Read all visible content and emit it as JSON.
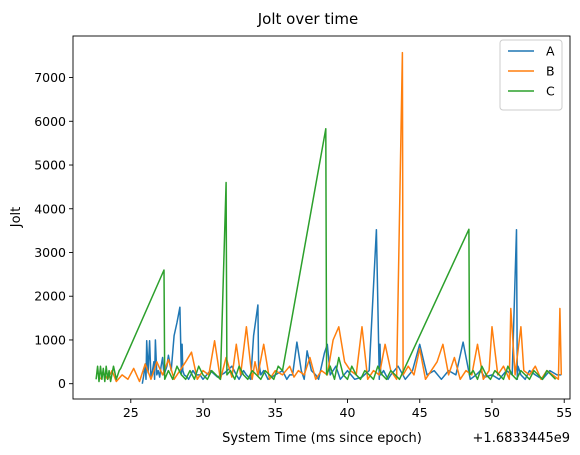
{
  "chart_data": {
    "type": "line",
    "title": "Jolt over time",
    "xlabel": "System Time (ms since epoch)",
    "ylabel": "Jolt",
    "x_offset_label": "+1.6833445e9",
    "xlim": [
      21,
      55.4
    ],
    "ylim": [
      -350,
      7950
    ],
    "xticks": [
      25,
      30,
      35,
      40,
      45,
      50,
      55
    ],
    "xtick_labels": [
      "25",
      "30",
      "35",
      "40",
      "45",
      "50",
      "55"
    ],
    "yticks": [
      0,
      1000,
      2000,
      3000,
      4000,
      5000,
      6000,
      7000
    ],
    "ytick_labels": [
      "0",
      "1000",
      "2000",
      "3000",
      "4000",
      "5000",
      "6000",
      "7000"
    ],
    "grid": false,
    "legend_position": "top-right",
    "series": [
      {
        "name": "A",
        "color": "#1f77b4",
        "x": [
          25.8,
          25.9,
          26.0,
          26.05,
          26.1,
          26.2,
          26.3,
          26.4,
          26.5,
          26.6,
          26.65,
          26.7,
          26.8,
          26.9,
          27.0,
          27.1,
          27.2,
          27.3,
          27.5,
          27.6,
          27.8,
          28.0,
          28.2,
          28.4,
          28.5,
          28.55,
          28.6,
          28.7,
          28.9,
          29.0,
          29.3,
          29.5,
          29.8,
          30.0,
          30.5,
          31.0,
          31.5,
          32.0,
          32.3,
          32.5,
          32.8,
          33.0,
          33.3,
          33.5,
          33.8,
          33.85,
          33.9,
          34.0,
          34.2,
          34.5,
          35.0,
          35.5,
          35.8,
          36.0,
          36.2,
          36.5,
          36.8,
          37.0,
          37.2,
          37.5,
          37.8,
          38.0,
          38.4,
          38.6,
          38.8,
          39.0,
          39.2,
          39.5,
          40.0,
          40.5,
          41.0,
          41.5,
          42.0,
          42.2,
          42.25,
          42.3,
          42.5,
          42.8,
          43.0,
          43.5,
          44.0,
          44.5,
          45.0,
          45.5,
          46.0,
          46.5,
          47.0,
          47.5,
          48.0,
          48.5,
          48.9,
          49.2,
          49.5,
          50.0,
          50.5,
          51.0,
          51.4,
          51.7,
          51.75,
          51.8,
          52.0,
          52.3,
          52.6,
          53.0,
          53.5,
          54.0,
          54.5,
          54.8
        ],
        "y": [
          0,
          200,
          450,
          100,
          980,
          250,
          980,
          120,
          300,
          500,
          100,
          1000,
          200,
          300,
          150,
          400,
          600,
          200,
          400,
          650,
          300,
          1100,
          1400,
          1750,
          200,
          900,
          300,
          200,
          150,
          100,
          300,
          200,
          200,
          100,
          300,
          150,
          250,
          400,
          200,
          100,
          300,
          200,
          100,
          1100,
          1800,
          200,
          400,
          200,
          300,
          100,
          200,
          300,
          100,
          200,
          200,
          950,
          300,
          100,
          750,
          300,
          200,
          100,
          700,
          900,
          200,
          300,
          400,
          100,
          300,
          100,
          150,
          300,
          3520,
          100,
          900,
          200,
          300,
          100,
          200,
          400,
          100,
          300,
          900,
          200,
          300,
          100,
          300,
          200,
          950,
          100,
          200,
          300,
          150,
          200,
          100,
          300,
          200,
          3520,
          100,
          400,
          200,
          100,
          300,
          200,
          100,
          300,
          200,
          200
        ]
      },
      {
        "name": "B",
        "color": "#ff7f0e",
        "x": [
          22.9,
          23.1,
          23.4,
          23.7,
          24.0,
          24.4,
          24.8,
          25.2,
          25.6,
          26.0,
          26.4,
          26.8,
          27.2,
          27.6,
          28.0,
          28.4,
          28.8,
          29.2,
          29.6,
          30.0,
          30.4,
          30.8,
          31.2,
          31.6,
          32.0,
          32.3,
          32.6,
          33.0,
          33.4,
          33.6,
          33.8,
          34.2,
          34.6,
          35.0,
          35.5,
          36.0,
          36.3,
          36.6,
          37.0,
          37.4,
          37.8,
          38.2,
          38.6,
          39.0,
          39.4,
          39.8,
          40.2,
          40.6,
          41.0,
          41.4,
          41.8,
          42.2,
          42.6,
          43.0,
          43.4,
          43.8,
          43.85,
          44.2,
          44.6,
          45.0,
          45.4,
          45.8,
          46.2,
          46.6,
          47.0,
          47.4,
          47.8,
          48.2,
          48.6,
          49.0,
          49.4,
          49.8,
          50.0,
          50.4,
          50.8,
          51.2,
          51.3,
          51.6,
          52.0,
          52.2,
          52.6,
          53.0,
          53.4,
          53.8,
          54.2,
          54.6,
          54.7,
          54.8
        ],
        "y": [
          100,
          250,
          100,
          300,
          50,
          200,
          100,
          350,
          50,
          450,
          100,
          500,
          200,
          550,
          100,
          300,
          500,
          720,
          100,
          300,
          200,
          980,
          100,
          600,
          150,
          900,
          200,
          1300,
          100,
          500,
          200,
          900,
          100,
          300,
          200,
          400,
          150,
          300,
          200,
          600,
          100,
          300,
          200,
          1000,
          1300,
          500,
          300,
          200,
          1300,
          100,
          300,
          200,
          900,
          300,
          100,
          7570,
          200,
          400,
          200,
          800,
          100,
          300,
          500,
          900,
          200,
          600,
          100,
          300,
          200,
          900,
          100,
          300,
          1300,
          200,
          400,
          100,
          1720,
          200,
          1300,
          300,
          200,
          400,
          100,
          300,
          200,
          100,
          1720,
          200
        ]
      },
      {
        "name": "C",
        "color": "#2ca02c",
        "x": [
          22.6,
          22.7,
          22.8,
          22.9,
          23.0,
          23.1,
          23.2,
          23.3,
          23.4,
          23.5,
          23.6,
          23.8,
          24.0,
          24.2,
          24.3,
          27.3,
          27.35,
          27.6,
          27.9,
          28.2,
          28.5,
          28.8,
          29.1,
          29.4,
          29.7,
          30.0,
          30.3,
          30.6,
          30.9,
          31.2,
          31.6,
          31.65,
          31.9,
          32.2,
          32.5,
          32.8,
          33.1,
          33.4,
          33.7,
          34.0,
          34.3,
          34.6,
          34.9,
          35.2,
          35.5,
          38.5,
          38.55,
          38.8,
          39.1,
          39.4,
          39.7,
          40.0,
          40.3,
          40.6,
          40.9,
          41.2,
          41.5,
          41.8,
          42.1,
          42.4,
          42.7,
          43.0,
          43.3,
          43.6,
          48.4,
          48.45,
          48.7,
          49.0,
          49.3,
          49.6,
          49.9,
          50.2,
          50.5,
          50.8,
          51.1,
          51.4,
          51.7,
          52.0,
          52.3,
          52.6,
          52.9,
          53.2,
          53.5,
          53.8,
          54.1,
          54.4
        ],
        "y": [
          100,
          400,
          50,
          400,
          100,
          350,
          50,
          400,
          100,
          300,
          50,
          400,
          100,
          300,
          350,
          2600,
          100,
          300,
          100,
          400,
          200,
          100,
          300,
          100,
          400,
          200,
          100,
          300,
          200,
          100,
          4600,
          200,
          300,
          100,
          400,
          200,
          100,
          300,
          200,
          100,
          300,
          200,
          100,
          400,
          300,
          5830,
          200,
          400,
          100,
          600,
          200,
          100,
          400,
          200,
          100,
          300,
          200,
          100,
          400,
          200,
          100,
          300,
          200,
          100,
          3530,
          200,
          300,
          100,
          400,
          200,
          100,
          300,
          200,
          100,
          400,
          200,
          100,
          300,
          200,
          100,
          300,
          200,
          100,
          300,
          200,
          100
        ]
      }
    ]
  }
}
